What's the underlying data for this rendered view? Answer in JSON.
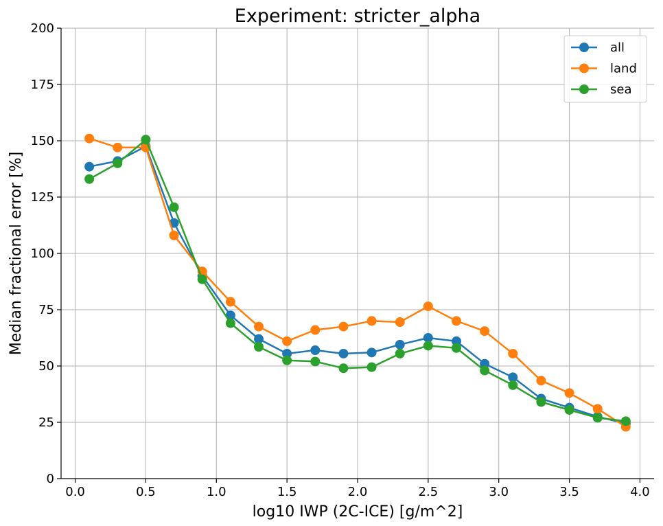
{
  "chart_data": {
    "type": "line",
    "title": "Experiment: stricter_alpha",
    "xlabel": "log10 IWP (2C-ICE) [g/m^2]",
    "ylabel": "Median fractional error [%]",
    "xlim": [
      -0.1,
      4.1
    ],
    "ylim": [
      0,
      200
    ],
    "xticks": [
      0.0,
      0.5,
      1.0,
      1.5,
      2.0,
      2.5,
      3.0,
      3.5,
      4.0
    ],
    "xtick_labels": [
      "0.0",
      "0.5",
      "1.0",
      "1.5",
      "2.0",
      "2.5",
      "3.0",
      "3.5",
      "4.0"
    ],
    "yticks": [
      0,
      25,
      50,
      75,
      100,
      125,
      150,
      175,
      200
    ],
    "ytick_labels": [
      "0",
      "25",
      "50",
      "75",
      "100",
      "125",
      "150",
      "175",
      "200"
    ],
    "grid": true,
    "legend_position": "top-right",
    "x": [
      0.1,
      0.3,
      0.5,
      0.7,
      0.9,
      1.1,
      1.3,
      1.5,
      1.7,
      1.9,
      2.1,
      2.3,
      2.5,
      2.7,
      2.9,
      3.1,
      3.3,
      3.5,
      3.7,
      3.9
    ],
    "series": [
      {
        "name": "all",
        "color": "#1f77b4",
        "values": [
          138.5,
          141,
          147.5,
          113.5,
          90,
          72.5,
          62,
          55.5,
          57,
          55.5,
          56,
          59.5,
          62.5,
          61,
          51,
          45,
          35.5,
          31.5,
          27.5,
          24.5
        ]
      },
      {
        "name": "land",
        "color": "#ff7f0e",
        "values": [
          151,
          147,
          147,
          108,
          92,
          78.5,
          67.5,
          61,
          66,
          67.5,
          70,
          69.5,
          76.5,
          70,
          65.5,
          55.5,
          43.5,
          38,
          31,
          23
        ]
      },
      {
        "name": "sea",
        "color": "#2ca02c",
        "values": [
          133,
          140,
          150.5,
          120.5,
          88.5,
          69,
          58.5,
          52.5,
          52,
          49,
          49.5,
          55.5,
          59,
          58,
          48,
          41.5,
          34,
          30.5,
          27,
          25.5
        ]
      }
    ]
  }
}
